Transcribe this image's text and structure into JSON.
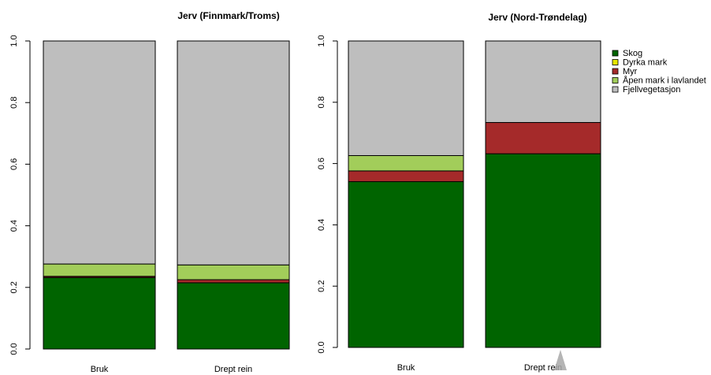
{
  "chart_data": [
    {
      "type": "bar",
      "stacked": true,
      "title": "Jerv (Finnmark/Troms)",
      "categories": [
        "Bruk",
        "Drept rein"
      ],
      "ylim": [
        0,
        1
      ],
      "yticks": [
        "0.0",
        "0.2",
        "0.4",
        "0.6",
        "0.8",
        "1.0"
      ],
      "series": [
        {
          "name": "Skog",
          "color": "#006400",
          "values": [
            0.232,
            0.215
          ]
        },
        {
          "name": "Dyrka mark",
          "color": "#e6e600",
          "values": [
            0.0,
            0.0
          ]
        },
        {
          "name": "Myr",
          "color": "#a52a2a",
          "values": [
            0.004,
            0.01
          ]
        },
        {
          "name": "Åpen mark i lavlandet",
          "color": "#a2cd5a",
          "values": [
            0.04,
            0.048
          ]
        },
        {
          "name": "Fjellvegetasjon",
          "color": "#bebebe",
          "values": [
            0.724,
            0.727
          ]
        }
      ]
    },
    {
      "type": "bar",
      "stacked": true,
      "title": "Jerv (Nord-Trøndelag)",
      "categories": [
        "Bruk",
        "Drept rein"
      ],
      "ylim": [
        0,
        1
      ],
      "yticks": [
        "0.0",
        "0.2",
        "0.4",
        "0.6",
        "0.8",
        "1.0"
      ],
      "legend_position": "right",
      "series": [
        {
          "name": "Skog",
          "color": "#006400",
          "values": [
            0.541,
            0.632
          ]
        },
        {
          "name": "Dyrka mark",
          "color": "#e6e600",
          "values": [
            0.0,
            0.0
          ]
        },
        {
          "name": "Myr",
          "color": "#a52a2a",
          "values": [
            0.035,
            0.102
          ]
        },
        {
          "name": "Åpen mark i lavlandet",
          "color": "#a2cd5a",
          "values": [
            0.05,
            0.0
          ]
        },
        {
          "name": "Fjellvegetasjon",
          "color": "#bebebe",
          "values": [
            0.374,
            0.266
          ]
        }
      ]
    }
  ],
  "legend": {
    "entries": [
      "Skog",
      "Dyrka mark",
      "Myr",
      "Åpen mark i lavlandet",
      "Fjellvegetasjon"
    ],
    "colors": [
      "#006400",
      "#e6e600",
      "#a52a2a",
      "#a2cd5a",
      "#bebebe"
    ]
  }
}
